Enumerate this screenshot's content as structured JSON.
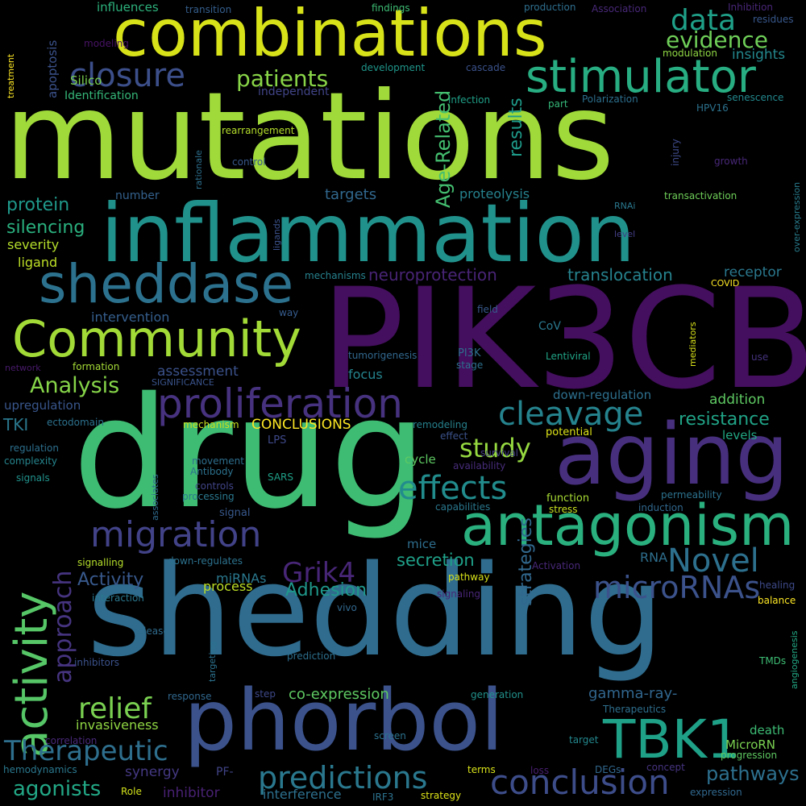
{
  "background": "#000000",
  "palette": [
    "#440154",
    "#482878",
    "#3e4989",
    "#31688e",
    "#26828e",
    "#1f9e89",
    "#35b779",
    "#6ece58",
    "#b5de2b",
    "#fde725"
  ],
  "words": [
    {
      "text": "mutations",
      "color": "#9fda3a"
    },
    {
      "text": "shedding",
      "color": "#2f6c8e"
    },
    {
      "text": "drug",
      "color": "#3fbc73"
    },
    {
      "text": "PIK3CB",
      "color": "#440f5e"
    },
    {
      "text": "inflammation",
      "color": "#21918c"
    },
    {
      "text": "combinations",
      "color": "#d8e219"
    },
    {
      "text": "phorbol",
      "color": "#3b528b"
    },
    {
      "text": "aging",
      "color": "#472f7d"
    },
    {
      "text": "antagonism",
      "color": "#2ab07f"
    },
    {
      "text": "stimulator",
      "color": "#27ad81"
    },
    {
      "text": "sheddase",
      "color": "#2c728e"
    },
    {
      "text": "Community",
      "color": "#a2da37"
    },
    {
      "text": "activity",
      "color": "#56c667"
    },
    {
      "text": "proliferation",
      "color": "#46327e"
    },
    {
      "text": "TBK1",
      "color": "#1fa188"
    },
    {
      "text": "conclusion",
      "color": "#3d4d8a"
    },
    {
      "text": "migration",
      "color": "#414287"
    },
    {
      "text": "closure",
      "color": "#3c4f8a"
    },
    {
      "text": "cleavage",
      "color": "#25838e"
    },
    {
      "text": "effects",
      "color": "#228c8d"
    },
    {
      "text": "predictions",
      "color": "#2a788e"
    },
    {
      "text": "Novel",
      "color": "#2d708e"
    },
    {
      "text": "data",
      "color": "#1fa088"
    },
    {
      "text": "Therapeutic",
      "color": "#2e6f8e"
    },
    {
      "text": "microRNAs",
      "color": "#3b528b"
    },
    {
      "text": "relief",
      "color": "#7ad151"
    },
    {
      "text": "approach",
      "color": "#463480"
    },
    {
      "text": "study",
      "color": "#95d840"
    },
    {
      "text": "patients",
      "color": "#89d548"
    },
    {
      "text": "Analysis",
      "color": "#86d549"
    },
    {
      "text": "Grik4",
      "color": "#482677"
    },
    {
      "text": "evidence",
      "color": "#6ece58"
    },
    {
      "text": "resistance",
      "color": "#20a386"
    },
    {
      "text": "Age-Related",
      "color": "#44bf70"
    },
    {
      "text": "agonists",
      "color": "#22a785"
    },
    {
      "text": "pathways",
      "color": "#2d708e"
    },
    {
      "text": "strategies",
      "color": "#31688e"
    },
    {
      "text": "results",
      "color": "#1e9b8a"
    },
    {
      "text": "protein",
      "color": "#1f998a"
    },
    {
      "text": "silencing",
      "color": "#2ab07f"
    },
    {
      "text": "translocation",
      "color": "#26828e"
    },
    {
      "text": "neuroprotection",
      "color": "#482475"
    },
    {
      "text": "secretion",
      "color": "#1fa088"
    },
    {
      "text": "Adhesion",
      "color": "#1f988b"
    },
    {
      "text": "Activity",
      "color": "#38598c"
    },
    {
      "text": "co-expression",
      "color": "#5ec962"
    },
    {
      "text": "gamma-ray-",
      "color": "#31668e"
    },
    {
      "text": "insights",
      "color": "#23888e"
    },
    {
      "text": "receptor",
      "color": "#2a788e"
    },
    {
      "text": "addition",
      "color": "#5ec962"
    },
    {
      "text": "CONCLUSIONS",
      "color": "#fde725"
    },
    {
      "text": "targets",
      "color": "#31688e"
    },
    {
      "text": "proteolysis",
      "color": "#26828e"
    },
    {
      "text": "severity",
      "color": "#b5de2b"
    },
    {
      "text": "ligand",
      "color": "#bddf26"
    },
    {
      "text": "TKI",
      "color": "#2a788e"
    },
    {
      "text": "upregulation",
      "color": "#39568c"
    },
    {
      "text": "assessment",
      "color": "#3b528b"
    },
    {
      "text": "intervention",
      "color": "#355f8d"
    },
    {
      "text": "focus",
      "color": "#25848e"
    },
    {
      "text": "invasiveness",
      "color": "#90d743"
    },
    {
      "text": "inhibitor",
      "color": "#482173"
    },
    {
      "text": "interference",
      "color": "#2d708e"
    },
    {
      "text": "synergy",
      "color": "#443983"
    },
    {
      "text": "miRNAs",
      "color": "#2a788e"
    },
    {
      "text": "process",
      "color": "#bddf26"
    },
    {
      "text": "RNA",
      "color": "#2e6f8e"
    },
    {
      "text": "mice",
      "color": "#2e6e8e"
    },
    {
      "text": "levels",
      "color": "#22a884"
    },
    {
      "text": "cycle",
      "color": "#5ec962"
    },
    {
      "text": "down-regulation",
      "color": "#2d708e"
    },
    {
      "text": "number",
      "color": "#34618d"
    },
    {
      "text": "apoptosis",
      "color": "#3b528b"
    },
    {
      "text": "independent",
      "color": "#414487"
    },
    {
      "text": "influences",
      "color": "#2db27d"
    },
    {
      "text": "Silico",
      "color": "#7ad151"
    },
    {
      "text": "Identification",
      "color": "#35b779"
    },
    {
      "text": "findings",
      "color": "#3dbc74"
    },
    {
      "text": "production",
      "color": "#2e6f8e"
    },
    {
      "text": "Association",
      "color": "#482878"
    },
    {
      "text": "Inhibition",
      "color": "#482677"
    },
    {
      "text": "residues",
      "color": "#38588c"
    },
    {
      "text": "transition",
      "color": "#355f8d"
    },
    {
      "text": "modeling",
      "color": "#471365"
    },
    {
      "text": "treatment",
      "color": "#fde725"
    },
    {
      "text": "development",
      "color": "#1f968b"
    },
    {
      "text": "cascade",
      "color": "#3b528b"
    },
    {
      "text": "modulation",
      "color": "#8fd744"
    },
    {
      "text": "infection",
      "color": "#1fa088"
    },
    {
      "text": "Polarization",
      "color": "#2d708e"
    },
    {
      "text": "senescence",
      "color": "#23888e"
    },
    {
      "text": "part",
      "color": "#35b779"
    },
    {
      "text": "HPV16",
      "color": "#2c728e"
    },
    {
      "text": "rearrangement",
      "color": "#b5de2b"
    },
    {
      "text": "control",
      "color": "#38598c"
    },
    {
      "text": "rationale",
      "color": "#2d708e"
    },
    {
      "text": "injury",
      "color": "#3e4a89"
    },
    {
      "text": "growth",
      "color": "#482878"
    },
    {
      "text": "transactivation",
      "color": "#6ece58"
    },
    {
      "text": "RNAi",
      "color": "#2a788e"
    },
    {
      "text": "ligands",
      "color": "#3b528b"
    },
    {
      "text": "level",
      "color": "#433e85"
    },
    {
      "text": "over-expression",
      "color": "#287d8e"
    },
    {
      "text": "mechanisms",
      "color": "#26828e"
    },
    {
      "text": "COVID",
      "color": "#fde725"
    },
    {
      "text": "way",
      "color": "#365c8d"
    },
    {
      "text": "field",
      "color": "#38598c"
    },
    {
      "text": "CoV",
      "color": "#2a788e"
    },
    {
      "text": "mediators",
      "color": "#d8e219"
    },
    {
      "text": "use",
      "color": "#46337e"
    },
    {
      "text": "tumorigenesis",
      "color": "#31688e"
    },
    {
      "text": "PI3K",
      "color": "#2e6f8e"
    },
    {
      "text": "stage",
      "color": "#2d708e"
    },
    {
      "text": "Lentiviral",
      "color": "#20a486"
    },
    {
      "text": "network",
      "color": "#481a6c"
    },
    {
      "text": "formation",
      "color": "#a5db36"
    },
    {
      "text": "SIGNIFICANCE",
      "color": "#3a548c"
    },
    {
      "text": "ectodomain",
      "color": "#2c728e"
    },
    {
      "text": "mechanism",
      "color": "#c8e020"
    },
    {
      "text": "LPS",
      "color": "#3e4989"
    },
    {
      "text": "remodeling",
      "color": "#26828e"
    },
    {
      "text": "effect",
      "color": "#3b528b"
    },
    {
      "text": "potential",
      "color": "#dde318"
    },
    {
      "text": "survival",
      "color": "#433e85"
    },
    {
      "text": "availability",
      "color": "#472c7a"
    },
    {
      "text": "regulation",
      "color": "#2d708e"
    },
    {
      "text": "complexity",
      "color": "#25858e"
    },
    {
      "text": "signals",
      "color": "#20928c"
    },
    {
      "text": "movement",
      "color": "#2e6f8e"
    },
    {
      "text": "Antibody",
      "color": "#2c728e"
    },
    {
      "text": "controls",
      "color": "#414487"
    },
    {
      "text": "processing",
      "color": "#2a788e"
    },
    {
      "text": "associates",
      "color": "#2f6c8e"
    },
    {
      "text": "SARS",
      "color": "#1fa088"
    },
    {
      "text": "signal",
      "color": "#38598c"
    },
    {
      "text": "function",
      "color": "#a8db34"
    },
    {
      "text": "stress",
      "color": "#c8e020"
    },
    {
      "text": "permeability",
      "color": "#2c728e"
    },
    {
      "text": "induction",
      "color": "#31688e"
    },
    {
      "text": "capabilities",
      "color": "#2a788e"
    },
    {
      "text": "signalling",
      "color": "#b5de2b"
    },
    {
      "text": "down-regulates",
      "color": "#2c728e"
    },
    {
      "text": "Activation",
      "color": "#482878"
    },
    {
      "text": "pathway",
      "color": "#d8e219"
    },
    {
      "text": "healing",
      "color": "#3e4a89"
    },
    {
      "text": "balance",
      "color": "#fde725"
    },
    {
      "text": "interaction",
      "color": "#2a788e"
    },
    {
      "text": "signaling",
      "color": "#482677"
    },
    {
      "text": "vivo",
      "color": "#31688e"
    },
    {
      "text": "release",
      "color": "#2f6c8e"
    },
    {
      "text": "targeting",
      "color": "#2c728e"
    },
    {
      "text": "angiogenesis",
      "color": "#22a884"
    },
    {
      "text": "inhibitors",
      "color": "#3b528b"
    },
    {
      "text": "prediction",
      "color": "#2d708e"
    },
    {
      "text": "TMDs",
      "color": "#3dbc74"
    },
    {
      "text": "Role",
      "color": "#d2e21b"
    },
    {
      "text": "response",
      "color": "#31688e"
    },
    {
      "text": "step",
      "color": "#3e4989"
    },
    {
      "text": "generation",
      "color": "#21918c"
    },
    {
      "text": "Therapeutics",
      "color": "#2e6f8e"
    },
    {
      "text": "correlation",
      "color": "#482878"
    },
    {
      "text": "screen",
      "color": "#2c728e"
    },
    {
      "text": "target",
      "color": "#23888e"
    },
    {
      "text": "death",
      "color": "#3dbc74"
    },
    {
      "text": "MicroRN",
      "color": "#7ad151"
    },
    {
      "text": "progression",
      "color": "#5ec962"
    },
    {
      "text": "hemodynamics",
      "color": "#2a788e"
    },
    {
      "text": "PF-",
      "color": "#414487"
    },
    {
      "text": "terms",
      "color": "#d8e219"
    },
    {
      "text": "loss",
      "color": "#481f70"
    },
    {
      "text": "DEGs",
      "color": "#31688e"
    },
    {
      "text": "concept",
      "color": "#463480"
    },
    {
      "text": "expression",
      "color": "#31688e"
    },
    {
      "text": "IRF3",
      "color": "#2c728e"
    },
    {
      "text": "strategy",
      "color": "#dde318"
    }
  ]
}
